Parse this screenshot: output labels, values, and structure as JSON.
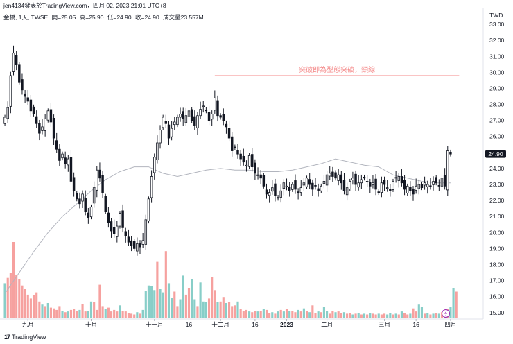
{
  "header": {
    "published": "jen4134發表於TradingView.com，四月 02, 2023 21:01 UTC+8",
    "symbol": "金橋, 1天, TWSE",
    "open": "開=25.05",
    "high": "高=25.90",
    "low": "低=24.90",
    "close": "收=24.90",
    "volume": "成交量23.557M"
  },
  "footer": {
    "logo": "17",
    "brand": "TradingView"
  },
  "colors": {
    "up": "#26a69a",
    "down": "#ef5350",
    "candle": "#131722",
    "ma": "#b2b5be",
    "annotation": "#f48a8a",
    "price_tag": "#131722"
  },
  "chart_data": {
    "type": "candlestick",
    "currency": "TWD",
    "last_price": "24.90",
    "ylim": [
      14.6,
      34.0
    ],
    "y_ticks": [
      "33.00",
      "32.00",
      "31.00",
      "30.00",
      "29.00",
      "28.00",
      "27.00",
      "26.00",
      "25.00",
      "24.00",
      "23.00",
      "22.00",
      "21.00",
      "20.00",
      "19.00",
      "18.00",
      "17.00",
      "16.00",
      "15.00"
    ],
    "x_labels": [
      {
        "label": "九月",
        "index": 8
      },
      {
        "label": "十月",
        "index": 30
      },
      {
        "label": "十一月",
        "index": 52
      },
      {
        "label": "16",
        "index": 64
      },
      {
        "label": "十二月",
        "index": 75
      },
      {
        "label": "16",
        "index": 87
      },
      {
        "label": "2023",
        "index": 98
      },
      {
        "label": "二月",
        "index": 112
      },
      {
        "label": "三月",
        "index": 132
      },
      {
        "label": "16",
        "index": 143
      },
      {
        "label": "四月",
        "index": 155
      }
    ],
    "annotation": {
      "text": "突破即為型態突破，頸線",
      "price": 29.8,
      "from_index": 73,
      "to_index": 158
    },
    "close": [
      27.2,
      27.8,
      29.8,
      31.2,
      30.5,
      29.4,
      28.9,
      28.5,
      28.2,
      27.6,
      27.4,
      26.8,
      26.2,
      26.6,
      27.1,
      27.6,
      26.9,
      25.9,
      25.2,
      24.5,
      24.9,
      24.3,
      24.6,
      23.2,
      22.6,
      22.1,
      21.8,
      22.4,
      21.3,
      20.9,
      21.6,
      22.8,
      23.9,
      23.4,
      22.5,
      21.3,
      20.6,
      20.1,
      19.9,
      20.4,
      21.2,
      20.3,
      19.8,
      19.4,
      19.2,
      19.0,
      19.3,
      19.1,
      19.5,
      20.8,
      22.1,
      23.5,
      24.7,
      25.6,
      26.4,
      27.2,
      26.8,
      25.9,
      26.5,
      26.9,
      27.2,
      27.4,
      27.1,
      27.3,
      27.6,
      27.0,
      26.7,
      27.3,
      27.7,
      27.9,
      27.6,
      27.0,
      27.4,
      28.4,
      27.3,
      27.2,
      27.0,
      26.6,
      25.9,
      25.1,
      25.3,
      24.9,
      24.6,
      24.4,
      24.2,
      24.8,
      24.1,
      23.7,
      23.6,
      23.4,
      22.9,
      22.4,
      22.5,
      22.8,
      22.3,
      22.2,
      22.6,
      23.1,
      22.9,
      22.6,
      23.0,
      22.7,
      22.5,
      22.8,
      23.1,
      23.4,
      23.0,
      22.7,
      22.9,
      22.6,
      22.9,
      23.2,
      23.6,
      23.7,
      23.5,
      23.4,
      23.6,
      23.1,
      22.6,
      22.8,
      23.2,
      23.4,
      23.0,
      23.1,
      23.3,
      23.4,
      23.2,
      22.9,
      23.1,
      22.7,
      22.5,
      23.1,
      23.0,
      22.8,
      22.6,
      23.2,
      23.4,
      23.5,
      23.1,
      22.7,
      22.9,
      22.6,
      22.4,
      22.9,
      23.0,
      22.8,
      23.1,
      23.0,
      22.9,
      23.2,
      23.1,
      22.9,
      23.4,
      22.9,
      25.1,
      24.9
    ],
    "ma_points": [
      [
        0,
        16.2
      ],
      [
        5,
        17.5
      ],
      [
        10,
        18.8
      ],
      [
        15,
        20.0
      ],
      [
        20,
        21.0
      ],
      [
        25,
        21.8
      ],
      [
        30,
        22.6
      ],
      [
        35,
        23.3
      ],
      [
        40,
        23.8
      ],
      [
        45,
        24.1
      ],
      [
        50,
        24.1
      ],
      [
        55,
        23.7
      ],
      [
        60,
        23.5
      ],
      [
        65,
        23.7
      ],
      [
        70,
        23.9
      ],
      [
        75,
        24.0
      ],
      [
        80,
        23.9
      ],
      [
        85,
        23.9
      ],
      [
        90,
        23.8
      ],
      [
        95,
        23.8
      ],
      [
        100,
        23.9
      ],
      [
        105,
        24.1
      ],
      [
        110,
        24.3
      ],
      [
        115,
        24.6
      ],
      [
        120,
        24.4
      ],
      [
        125,
        24.2
      ],
      [
        130,
        24.1
      ],
      [
        135,
        23.6
      ],
      [
        140,
        23.4
      ],
      [
        145,
        23.2
      ],
      [
        150,
        23.1
      ],
      [
        155,
        23.1
      ]
    ],
    "volume_bars": [
      {
        "i": 0,
        "v": 0.46,
        "d": "up"
      },
      {
        "i": 1,
        "v": 0.53,
        "d": "down"
      },
      {
        "i": 2,
        "v": 0.6,
        "d": "down"
      },
      {
        "i": 3,
        "v": 1.0,
        "d": "down"
      },
      {
        "i": 4,
        "v": 0.57,
        "d": "down"
      },
      {
        "i": 5,
        "v": 0.51,
        "d": "down"
      },
      {
        "i": 6,
        "v": 0.43,
        "d": "down"
      },
      {
        "i": 7,
        "v": 0.39,
        "d": "down"
      },
      {
        "i": 8,
        "v": 0.31,
        "d": "down"
      },
      {
        "i": 9,
        "v": 0.26,
        "d": "down"
      },
      {
        "i": 10,
        "v": 0.3,
        "d": "down"
      },
      {
        "i": 11,
        "v": 0.34,
        "d": "down"
      },
      {
        "i": 12,
        "v": 0.22,
        "d": "down"
      },
      {
        "i": 13,
        "v": 0.18,
        "d": "up"
      },
      {
        "i": 14,
        "v": 0.16,
        "d": "down"
      },
      {
        "i": 15,
        "v": 0.2,
        "d": "up"
      },
      {
        "i": 16,
        "v": 0.14,
        "d": "down"
      },
      {
        "i": 17,
        "v": 0.13,
        "d": "down"
      },
      {
        "i": 18,
        "v": 0.11,
        "d": "down"
      },
      {
        "i": 19,
        "v": 0.16,
        "d": "down"
      },
      {
        "i": 20,
        "v": 0.1,
        "d": "up"
      },
      {
        "i": 21,
        "v": 0.08,
        "d": "down"
      },
      {
        "i": 22,
        "v": 0.09,
        "d": "up"
      },
      {
        "i": 23,
        "v": 0.11,
        "d": "down"
      },
      {
        "i": 24,
        "v": 0.12,
        "d": "down"
      },
      {
        "i": 25,
        "v": 0.1,
        "d": "down"
      },
      {
        "i": 26,
        "v": 0.11,
        "d": "up"
      },
      {
        "i": 27,
        "v": 0.19,
        "d": "down"
      },
      {
        "i": 28,
        "v": 0.09,
        "d": "down"
      },
      {
        "i": 29,
        "v": 0.1,
        "d": "up"
      },
      {
        "i": 30,
        "v": 0.22,
        "d": "up"
      },
      {
        "i": 31,
        "v": 0.21,
        "d": "down"
      },
      {
        "i": 32,
        "v": 0.11,
        "d": "down"
      },
      {
        "i": 33,
        "v": 0.44,
        "d": "down"
      },
      {
        "i": 34,
        "v": 0.16,
        "d": "down"
      },
      {
        "i": 35,
        "v": 0.12,
        "d": "up"
      },
      {
        "i": 36,
        "v": 0.14,
        "d": "down"
      },
      {
        "i": 37,
        "v": 0.09,
        "d": "down"
      },
      {
        "i": 38,
        "v": 0.11,
        "d": "down"
      },
      {
        "i": 39,
        "v": 0.09,
        "d": "down"
      },
      {
        "i": 40,
        "v": 0.17,
        "d": "up"
      },
      {
        "i": 41,
        "v": 0.1,
        "d": "down"
      },
      {
        "i": 42,
        "v": 0.09,
        "d": "down"
      },
      {
        "i": 43,
        "v": 0.07,
        "d": "down"
      },
      {
        "i": 44,
        "v": 0.06,
        "d": "down"
      },
      {
        "i": 45,
        "v": 0.05,
        "d": "down"
      },
      {
        "i": 46,
        "v": 0.08,
        "d": "up"
      },
      {
        "i": 47,
        "v": 0.06,
        "d": "down"
      },
      {
        "i": 48,
        "v": 0.11,
        "d": "up"
      },
      {
        "i": 49,
        "v": 0.36,
        "d": "up"
      },
      {
        "i": 50,
        "v": 0.43,
        "d": "up"
      },
      {
        "i": 51,
        "v": 0.42,
        "d": "up"
      },
      {
        "i": 52,
        "v": 0.37,
        "d": "up"
      },
      {
        "i": 53,
        "v": 0.74,
        "d": "down"
      },
      {
        "i": 54,
        "v": 0.39,
        "d": "up"
      },
      {
        "i": 55,
        "v": 0.34,
        "d": "up"
      },
      {
        "i": 56,
        "v": 0.88,
        "d": "down"
      },
      {
        "i": 57,
        "v": 0.46,
        "d": "up"
      },
      {
        "i": 58,
        "v": 0.27,
        "d": "up"
      },
      {
        "i": 59,
        "v": 0.35,
        "d": "down"
      },
      {
        "i": 60,
        "v": 0.16,
        "d": "down"
      },
      {
        "i": 61,
        "v": 0.25,
        "d": "up"
      },
      {
        "i": 62,
        "v": 0.56,
        "d": "up"
      },
      {
        "i": 63,
        "v": 0.31,
        "d": "down"
      },
      {
        "i": 64,
        "v": 0.4,
        "d": "down"
      },
      {
        "i": 65,
        "v": 0.51,
        "d": "up"
      },
      {
        "i": 66,
        "v": 0.25,
        "d": "up"
      },
      {
        "i": 67,
        "v": 0.16,
        "d": "down"
      },
      {
        "i": 68,
        "v": 0.47,
        "d": "up"
      },
      {
        "i": 69,
        "v": 0.22,
        "d": "up"
      },
      {
        "i": 70,
        "v": 0.21,
        "d": "up"
      },
      {
        "i": 71,
        "v": 0.26,
        "d": "down"
      },
      {
        "i": 72,
        "v": 0.54,
        "d": "down"
      },
      {
        "i": 73,
        "v": 0.37,
        "d": "down"
      },
      {
        "i": 74,
        "v": 0.21,
        "d": "up"
      },
      {
        "i": 75,
        "v": 0.22,
        "d": "down"
      },
      {
        "i": 76,
        "v": 0.28,
        "d": "down"
      },
      {
        "i": 77,
        "v": 0.2,
        "d": "up"
      },
      {
        "i": 78,
        "v": 0.21,
        "d": "down"
      },
      {
        "i": 79,
        "v": 0.16,
        "d": "down"
      },
      {
        "i": 80,
        "v": 0.17,
        "d": "down"
      },
      {
        "i": 81,
        "v": 0.22,
        "d": "up"
      },
      {
        "i": 82,
        "v": 0.12,
        "d": "down"
      },
      {
        "i": 83,
        "v": 0.1,
        "d": "down"
      },
      {
        "i": 84,
        "v": 0.11,
        "d": "down"
      },
      {
        "i": 85,
        "v": 0.09,
        "d": "up"
      },
      {
        "i": 86,
        "v": 0.08,
        "d": "down"
      },
      {
        "i": 87,
        "v": 0.1,
        "d": "down"
      },
      {
        "i": 88,
        "v": 0.09,
        "d": "up"
      },
      {
        "i": 89,
        "v": 0.1,
        "d": "down"
      },
      {
        "i": 90,
        "v": 0.12,
        "d": "up"
      },
      {
        "i": 91,
        "v": 0.11,
        "d": "down"
      },
      {
        "i": 92,
        "v": 0.07,
        "d": "down"
      },
      {
        "i": 93,
        "v": 0.08,
        "d": "up"
      },
      {
        "i": 94,
        "v": 0.06,
        "d": "down"
      },
      {
        "i": 95,
        "v": 0.09,
        "d": "up"
      },
      {
        "i": 96,
        "v": 0.11,
        "d": "down"
      },
      {
        "i": 97,
        "v": 0.09,
        "d": "up"
      },
      {
        "i": 98,
        "v": 0.12,
        "d": "down"
      },
      {
        "i": 99,
        "v": 0.1,
        "d": "up"
      },
      {
        "i": 100,
        "v": 0.1,
        "d": "down"
      },
      {
        "i": 101,
        "v": 0.08,
        "d": "down"
      },
      {
        "i": 102,
        "v": 0.11,
        "d": "up"
      },
      {
        "i": 103,
        "v": 0.09,
        "d": "down"
      },
      {
        "i": 104,
        "v": 0.13,
        "d": "up"
      },
      {
        "i": 105,
        "v": 0.1,
        "d": "down"
      },
      {
        "i": 106,
        "v": 0.08,
        "d": "up"
      },
      {
        "i": 107,
        "v": 0.17,
        "d": "down"
      },
      {
        "i": 108,
        "v": 0.07,
        "d": "down"
      },
      {
        "i": 109,
        "v": 0.09,
        "d": "up"
      },
      {
        "i": 110,
        "v": 0.08,
        "d": "down"
      },
      {
        "i": 111,
        "v": 0.15,
        "d": "up"
      },
      {
        "i": 112,
        "v": 0.1,
        "d": "up"
      },
      {
        "i": 113,
        "v": 0.06,
        "d": "down"
      },
      {
        "i": 114,
        "v": 0.1,
        "d": "down"
      },
      {
        "i": 115,
        "v": 0.08,
        "d": "up"
      },
      {
        "i": 116,
        "v": 0.09,
        "d": "down"
      },
      {
        "i": 117,
        "v": 0.07,
        "d": "down"
      },
      {
        "i": 118,
        "v": 0.08,
        "d": "up"
      },
      {
        "i": 119,
        "v": 0.06,
        "d": "down"
      },
      {
        "i": 120,
        "v": 0.07,
        "d": "down"
      },
      {
        "i": 121,
        "v": 0.05,
        "d": "up"
      },
      {
        "i": 122,
        "v": 0.06,
        "d": "down"
      },
      {
        "i": 123,
        "v": 0.07,
        "d": "up"
      },
      {
        "i": 124,
        "v": 0.05,
        "d": "down"
      },
      {
        "i": 125,
        "v": 0.06,
        "d": "up"
      },
      {
        "i": 126,
        "v": 0.05,
        "d": "down"
      },
      {
        "i": 127,
        "v": 0.07,
        "d": "up"
      },
      {
        "i": 128,
        "v": 0.06,
        "d": "down"
      },
      {
        "i": 129,
        "v": 0.05,
        "d": "down"
      },
      {
        "i": 130,
        "v": 0.06,
        "d": "up"
      },
      {
        "i": 131,
        "v": 0.05,
        "d": "down"
      },
      {
        "i": 132,
        "v": 0.06,
        "d": "down"
      },
      {
        "i": 133,
        "v": 0.05,
        "d": "up"
      },
      {
        "i": 134,
        "v": 0.07,
        "d": "up"
      },
      {
        "i": 135,
        "v": 0.05,
        "d": "down"
      },
      {
        "i": 136,
        "v": 0.06,
        "d": "up"
      },
      {
        "i": 137,
        "v": 0.05,
        "d": "down"
      },
      {
        "i": 138,
        "v": 0.09,
        "d": "up"
      },
      {
        "i": 139,
        "v": 0.07,
        "d": "down"
      },
      {
        "i": 140,
        "v": 0.05,
        "d": "down"
      },
      {
        "i": 141,
        "v": 0.06,
        "d": "up"
      },
      {
        "i": 142,
        "v": 0.13,
        "d": "down"
      },
      {
        "i": 143,
        "v": 0.09,
        "d": "down"
      },
      {
        "i": 144,
        "v": 0.18,
        "d": "up"
      },
      {
        "i": 145,
        "v": 0.15,
        "d": "up"
      },
      {
        "i": 146,
        "v": 0.06,
        "d": "down"
      },
      {
        "i": 147,
        "v": 0.07,
        "d": "up"
      },
      {
        "i": 148,
        "v": 0.05,
        "d": "down"
      },
      {
        "i": 149,
        "v": 0.06,
        "d": "up"
      },
      {
        "i": 150,
        "v": 0.07,
        "d": "down"
      },
      {
        "i": 151,
        "v": 0.06,
        "d": "up"
      },
      {
        "i": 152,
        "v": 0.08,
        "d": "down"
      },
      {
        "i": 153,
        "v": 0.07,
        "d": "up"
      },
      {
        "i": 154,
        "v": 0.12,
        "d": "down"
      },
      {
        "i": 155,
        "v": 0.15,
        "d": "up"
      },
      {
        "i": 156,
        "v": 0.4,
        "d": "up"
      },
      {
        "i": 157,
        "v": 0.35,
        "d": "down"
      }
    ]
  }
}
